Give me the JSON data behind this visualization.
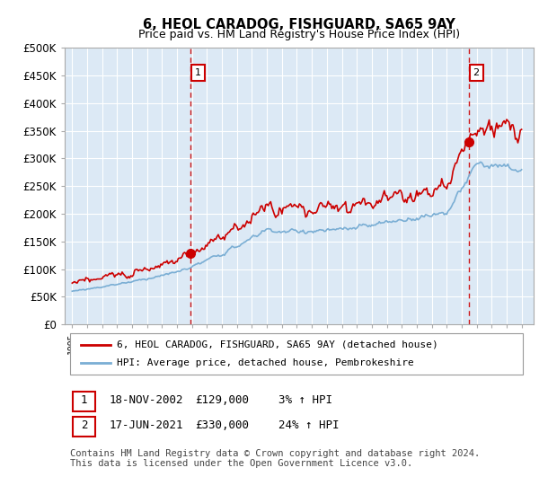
{
  "title": "6, HEOL CARADOG, FISHGUARD, SA65 9AY",
  "subtitle": "Price paid vs. HM Land Registry's House Price Index (HPI)",
  "ylim": [
    0,
    500000
  ],
  "yticks": [
    0,
    50000,
    100000,
    150000,
    200000,
    250000,
    300000,
    350000,
    400000,
    450000,
    500000
  ],
  "legend_label_red": "6, HEOL CARADOG, FISHGUARD, SA65 9AY (detached house)",
  "legend_label_blue": "HPI: Average price, detached house, Pembrokeshire",
  "annotation1_date": "18-NOV-2002",
  "annotation1_price": "£129,000",
  "annotation1_hpi": "3% ↑ HPI",
  "annotation2_date": "17-JUN-2021",
  "annotation2_price": "£330,000",
  "annotation2_hpi": "24% ↑ HPI",
  "footnote": "Contains HM Land Registry data © Crown copyright and database right 2024.\nThis data is licensed under the Open Government Licence v3.0.",
  "transaction1_x": 2002.88,
  "transaction1_y": 129000,
  "transaction2_x": 2021.46,
  "transaction2_y": 330000,
  "background_color": "#ffffff",
  "plot_bg_color": "#dce9f5",
  "grid_color": "#ffffff",
  "red_color": "#cc0000",
  "blue_color": "#7aaed4",
  "vline_color": "#cc0000",
  "annotation_box_color": "#cc0000",
  "xmin": 1994.5,
  "xmax": 2025.8
}
